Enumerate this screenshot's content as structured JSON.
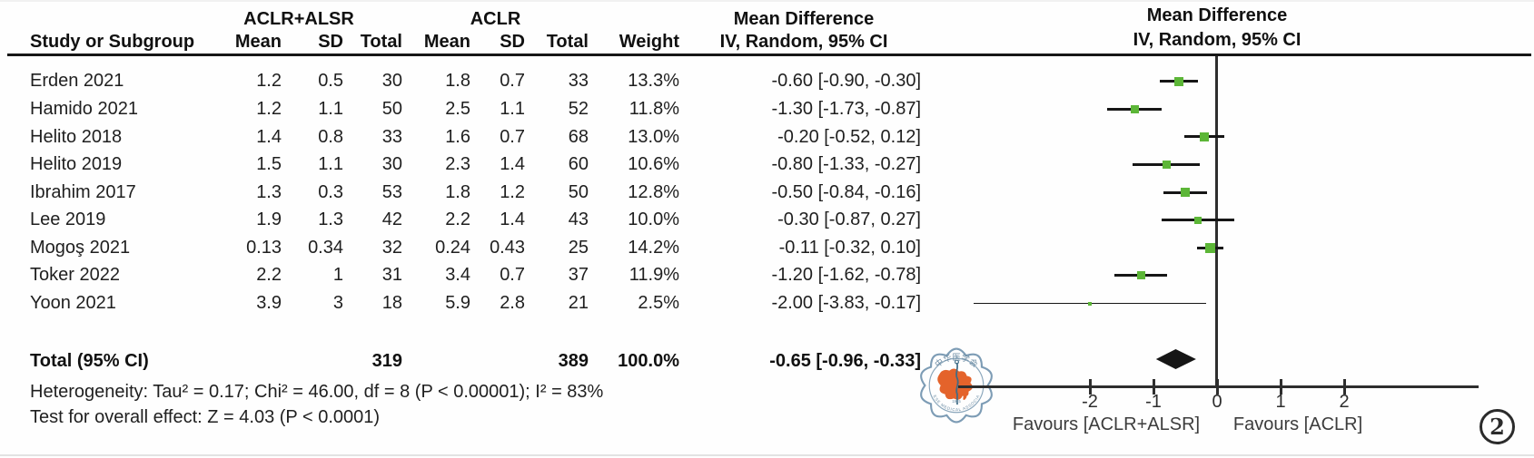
{
  "figure": {
    "label": "2"
  },
  "header": {
    "group1": "ACLR+ALSR",
    "group2": "ACLR",
    "md": "Mean Difference",
    "method": "IV, Random, 95% CI",
    "study": "Study or Subgroup",
    "mean": "Mean",
    "sd": "SD",
    "total": "Total",
    "weight": "Weight"
  },
  "rows": [
    {
      "study": "Erden 2021",
      "mean1": "1.2",
      "sd1": "0.5",
      "total1": "30",
      "mean2": "1.8",
      "sd2": "0.7",
      "total2": "33",
      "weight": "13.3%",
      "ci": "-0.60 [-0.90, -0.30]"
    },
    {
      "study": "Hamido 2021",
      "mean1": "1.2",
      "sd1": "1.1",
      "total1": "50",
      "mean2": "2.5",
      "sd2": "1.1",
      "total2": "52",
      "weight": "11.8%",
      "ci": "-1.30 [-1.73, -0.87]"
    },
    {
      "study": "Helito 2018",
      "mean1": "1.4",
      "sd1": "0.8",
      "total1": "33",
      "mean2": "1.6",
      "sd2": "0.7",
      "total2": "68",
      "weight": "13.0%",
      "ci": "-0.20 [-0.52, 0.12]"
    },
    {
      "study": "Helito 2019",
      "mean1": "1.5",
      "sd1": "1.1",
      "total1": "30",
      "mean2": "2.3",
      "sd2": "1.4",
      "total2": "60",
      "weight": "10.6%",
      "ci": "-0.80 [-1.33, -0.27]"
    },
    {
      "study": "Ibrahim 2017",
      "mean1": "1.3",
      "sd1": "0.3",
      "total1": "53",
      "mean2": "1.8",
      "sd2": "1.2",
      "total2": "50",
      "weight": "12.8%",
      "ci": "-0.50 [-0.84, -0.16]"
    },
    {
      "study": "Lee 2019",
      "mean1": "1.9",
      "sd1": "1.3",
      "total1": "42",
      "mean2": "2.2",
      "sd2": "1.4",
      "total2": "43",
      "weight": "10.0%",
      "ci": "-0.30 [-0.87, 0.27]"
    },
    {
      "study": "Mogoş 2021",
      "mean1": "0.13",
      "sd1": "0.34",
      "total1": "32",
      "mean2": "0.24",
      "sd2": "0.43",
      "total2": "25",
      "weight": "14.2%",
      "ci": "-0.11 [-0.32, 0.10]"
    },
    {
      "study": "Toker 2022",
      "mean1": "2.2",
      "sd1": "1",
      "total1": "31",
      "mean2": "3.4",
      "sd2": "0.7",
      "total2": "37",
      "weight": "11.9%",
      "ci": "-1.20 [-1.62, -0.78]"
    },
    {
      "study": "Yoon 2021",
      "mean1": "3.9",
      "sd1": "3",
      "total1": "18",
      "mean2": "5.9",
      "sd2": "2.8",
      "total2": "21",
      "weight": "2.5%",
      "ci": "-2.00 [-3.83, -0.17]"
    }
  ],
  "total_row": {
    "label": "Total (95% CI)",
    "total1": "319",
    "total2": "389",
    "weight": "100.0%",
    "ci": "-0.65 [-0.96, -0.33]"
  },
  "footer": {
    "heterogeneity": "Heterogeneity: Tau² = 0.17; Chi² = 46.00, df = 8 (P < 0.00001); I² = 83%",
    "overall": "Test for overall effect: Z = 4.03 (P < 0.0001)"
  },
  "plot": {
    "favours_left": "Favours [ACLR+ALSR]",
    "favours_right": "Favours [ACLR]",
    "marker_color": "#5cb637",
    "line_color": "#161616"
  },
  "watermark": {
    "name": "chinese-medical-association-seal",
    "top_text": "中华医学会",
    "bottom_text": "CHINESE MEDICAL ASSOCIATION",
    "year": "1915"
  },
  "chart_data": {
    "type": "forest",
    "title": "Mean Difference, IV, Random, 95% CI",
    "x_axis": {
      "ticks": [
        -2,
        -1,
        0,
        1,
        2
      ],
      "range": [
        -4.07,
        4.12
      ]
    },
    "favours": [
      "Favours [ACLR+ALSR]",
      "Favours [ACLR]"
    ],
    "studies": [
      {
        "name": "Erden 2021",
        "md": -0.6,
        "lo": -0.9,
        "hi": -0.3,
        "weight": 13.3
      },
      {
        "name": "Hamido 2021",
        "md": -1.3,
        "lo": -1.73,
        "hi": -0.87,
        "weight": 11.8
      },
      {
        "name": "Helito 2018",
        "md": -0.2,
        "lo": -0.52,
        "hi": 0.12,
        "weight": 13.0
      },
      {
        "name": "Helito 2019",
        "md": -0.8,
        "lo": -1.33,
        "hi": -0.27,
        "weight": 10.6
      },
      {
        "name": "Ibrahim 2017",
        "md": -0.5,
        "lo": -0.84,
        "hi": -0.16,
        "weight": 12.8
      },
      {
        "name": "Lee 2019",
        "md": -0.3,
        "lo": -0.87,
        "hi": 0.27,
        "weight": 10.0
      },
      {
        "name": "Mogoş 2021",
        "md": -0.11,
        "lo": -0.32,
        "hi": 0.1,
        "weight": 14.2
      },
      {
        "name": "Toker 2022",
        "md": -1.2,
        "lo": -1.62,
        "hi": -0.78,
        "weight": 11.9
      },
      {
        "name": "Yoon 2021",
        "md": -2.0,
        "lo": -3.83,
        "hi": -0.17,
        "weight": 2.5
      }
    ],
    "total": {
      "name": "Total (95% CI)",
      "md": -0.65,
      "lo": -0.96,
      "hi": -0.33,
      "weight": 100.0
    }
  }
}
